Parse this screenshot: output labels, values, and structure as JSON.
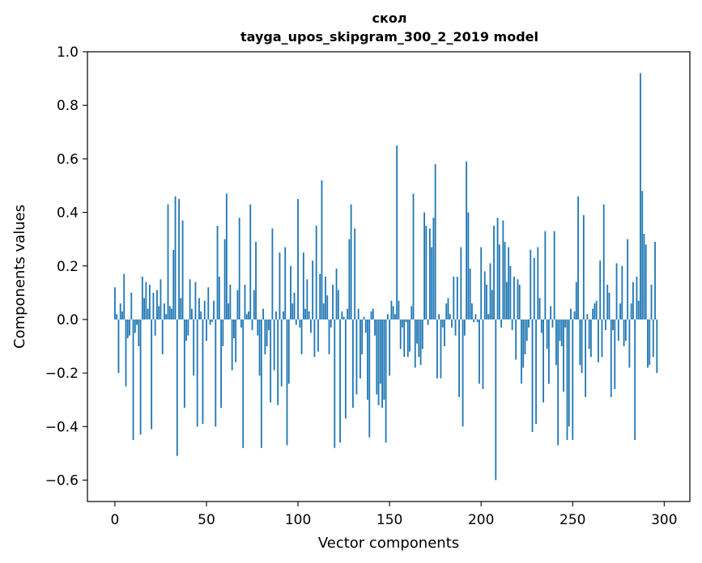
{
  "chart_data": {
    "type": "bar",
    "title": "скол",
    "subtitle": "tayga_upos_skipgram_300_2_2019 model",
    "xlabel": "Vector components",
    "ylabel": "Components values",
    "xlim": [
      -15,
      314
    ],
    "ylim": [
      -0.68,
      1.0
    ],
    "xticks": [
      0,
      50,
      100,
      150,
      200,
      250,
      300
    ],
    "yticks": [
      -0.6,
      -0.4,
      -0.2,
      0.0,
      0.2,
      0.4,
      0.6,
      0.8,
      1.0
    ],
    "grid": false,
    "bar_color": "#1f77b4",
    "values": [
      0.12,
      0.02,
      -0.2,
      0.06,
      0.03,
      0.17,
      -0.25,
      -0.07,
      -0.06,
      0.1,
      -0.45,
      -0.05,
      -0.02,
      -0.1,
      -0.43,
      0.16,
      0.08,
      0.14,
      0.04,
      0.13,
      -0.41,
      0.1,
      -0.06,
      0.11,
      0.05,
      0.15,
      -0.13,
      0.06,
      0.02,
      0.43,
      0.05,
      0.04,
      0.26,
      0.46,
      -0.51,
      0.45,
      0.08,
      0.37,
      -0.33,
      -0.08,
      -0.06,
      0.15,
      0.04,
      -0.21,
      0.14,
      -0.4,
      0.08,
      0.03,
      -0.39,
      0.07,
      -0.08,
      0.12,
      -0.02,
      -0.01,
      0.07,
      -0.4,
      0.35,
      0.16,
      -0.33,
      -0.1,
      0.3,
      0.47,
      0.06,
      0.13,
      -0.19,
      -0.07,
      -0.16,
      0.11,
      0.38,
      -0.03,
      -0.48,
      0.13,
      0.02,
      0.03,
      0.43,
      -0.04,
      0.11,
      0.29,
      -0.06,
      -0.21,
      -0.48,
      0.04,
      -0.13,
      -0.1,
      -0.04,
      -0.31,
      0.34,
      -0.19,
      0.03,
      -0.32,
      0.25,
      -0.25,
      0.03,
      0.27,
      -0.47,
      -0.24,
      0.2,
      0.06,
      0.1,
      -0.02,
      0.45,
      -0.03,
      -0.13,
      0.25,
      0.04,
      0.15,
      0.03,
      -0.05,
      0.22,
      -0.14,
      0.35,
      -0.12,
      0.17,
      0.52,
      0.06,
      0.16,
      0.09,
      -0.13,
      -0.03,
      0.13,
      -0.48,
      0.19,
      0.11,
      -0.46,
      0.03,
      0.01,
      -0.37,
      0.04,
      0.3,
      0.43,
      -0.33,
      0.34,
      -0.28,
      0.04,
      -0.22,
      -0.13,
      0.01,
      -0.05,
      -0.3,
      -0.44,
      0.03,
      0.04,
      -0.06,
      -0.28,
      -0.32,
      -0.24,
      -0.33,
      -0.3,
      -0.46,
      0.02,
      -0.21,
      0.07,
      0.05,
      0.02,
      0.65,
      0.07,
      -0.11,
      -0.03,
      -0.14,
      -0.01,
      -0.14,
      -0.12,
      0.05,
      0.47,
      -0.18,
      -0.09,
      -0.14,
      -0.17,
      -0.11,
      0.4,
      0.35,
      -0.02,
      0.34,
      0.27,
      0.38,
      0.58,
      -0.22,
      0.02,
      -0.22,
      -0.03,
      -0.1,
      0.06,
      0.08,
      0.02,
      -0.03,
      0.16,
      -0.06,
      0.16,
      -0.29,
      0.27,
      -0.4,
      -0.06,
      0.59,
      0.4,
      0.19,
      0.06,
      -0.01,
      0.02,
      -0.01,
      -0.24,
      0.27,
      -0.26,
      0.18,
      0.13,
      0.02,
      0.21,
      0.11,
      0.35,
      -0.6,
      0.38,
      0.28,
      -0.03,
      0.37,
      0.29,
      0.14,
      0.27,
      0.2,
      -0.04,
      0.16,
      -0.15,
      0.15,
      0.13,
      -0.24,
      -0.18,
      -0.13,
      -0.08,
      -0.03,
      0.26,
      -0.42,
      0.23,
      -0.39,
      0.27,
      0.08,
      -0.05,
      -0.31,
      0.33,
      -0.11,
      -0.24,
      0.05,
      -0.03,
      0.33,
      -0.17,
      -0.47,
      -0.08,
      -0.1,
      -0.27,
      -0.03,
      -0.45,
      -0.4,
      0.04,
      -0.45,
      0.03,
      0.14,
      0.46,
      -0.17,
      -0.2,
      0.39,
      -0.29,
      0.02,
      -0.11,
      -0.14,
      0.04,
      0.06,
      0.07,
      -0.16,
      0.22,
      -0.14,
      0.43,
      -0.04,
      0.13,
      0.1,
      -0.29,
      -0.04,
      -0.26,
      0.21,
      -0.08,
      0.06,
      0.2,
      -0.1,
      -0.08,
      0.3,
      -0.18,
      0.06,
      0.14,
      -0.45,
      0.16,
      0.07,
      0.92,
      0.48,
      0.32,
      0.28,
      -0.18,
      -0.17,
      0.13,
      -0.14,
      0.29,
      -0.2
    ]
  }
}
